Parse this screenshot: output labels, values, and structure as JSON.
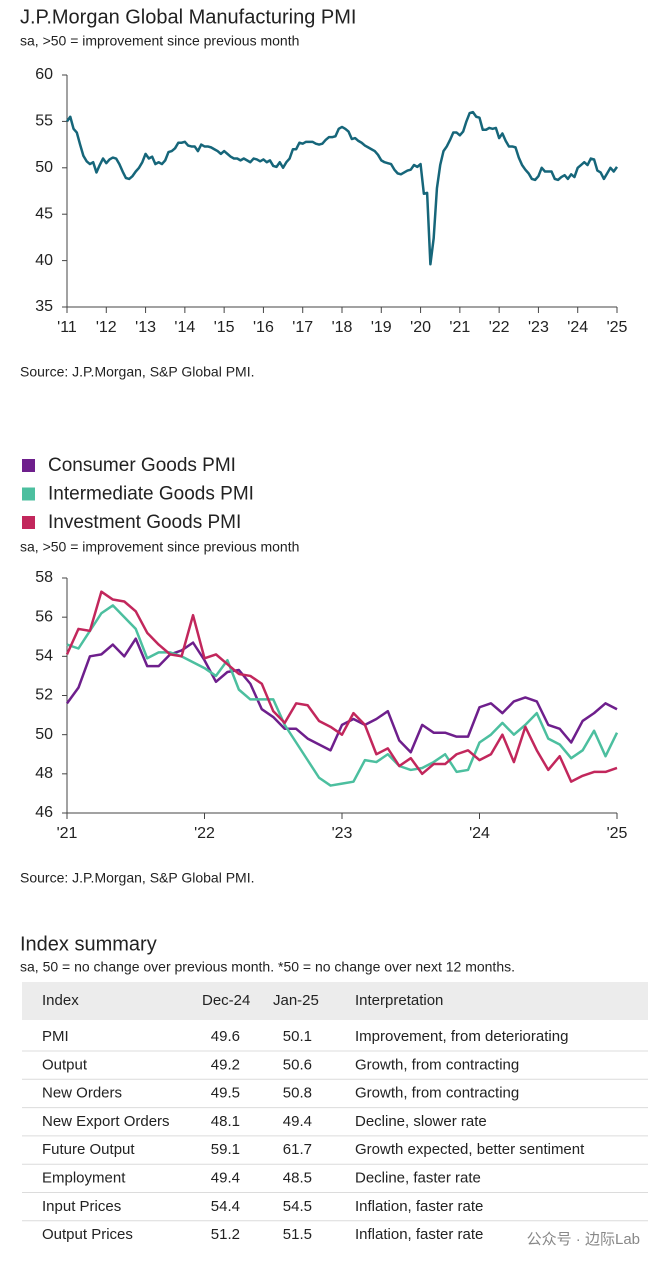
{
  "chart_data": [
    {
      "type": "line",
      "title": "J.P.Morgan Global Manufacturing PMI",
      "subtitle": "sa, >50 = improvement since previous month",
      "source": "Source: J.P.Morgan, S&P Global PMI.",
      "color": "#16667a",
      "categories": [
        "'11",
        null,
        null,
        null,
        null,
        null,
        null,
        null,
        null,
        null,
        null,
        null,
        "'12",
        null,
        null,
        null,
        null,
        null,
        null,
        null,
        null,
        null,
        null,
        null,
        "'13",
        null,
        null,
        null,
        null,
        null,
        null,
        null,
        null,
        null,
        null,
        null,
        "'14",
        null,
        null,
        null,
        null,
        null,
        null,
        null,
        null,
        null,
        null,
        null,
        "'15",
        null,
        null,
        null,
        null,
        null,
        null,
        null,
        null,
        null,
        null,
        null,
        "'16",
        null,
        null,
        null,
        null,
        null,
        null,
        null,
        null,
        null,
        null,
        null,
        "'17",
        null,
        null,
        null,
        null,
        null,
        null,
        null,
        null,
        null,
        null,
        null,
        "'18",
        null,
        null,
        null,
        null,
        null,
        null,
        null,
        null,
        null,
        null,
        null,
        "'19",
        null,
        null,
        null,
        null,
        null,
        null,
        null,
        null,
        null,
        null,
        null,
        "'20",
        null,
        null,
        null,
        null,
        null,
        null,
        null,
        null,
        null,
        null,
        null,
        "'21",
        null,
        null,
        null,
        null,
        null,
        null,
        null,
        null,
        null,
        null,
        null,
        "'22",
        null,
        null,
        null,
        null,
        null,
        null,
        null,
        null,
        null,
        null,
        null,
        "'23",
        null,
        null,
        null,
        null,
        null,
        null,
        null,
        null,
        null,
        null,
        null,
        "'24",
        null,
        null,
        null,
        null,
        null,
        null,
        null,
        null,
        null,
        null,
        null,
        "'25"
      ],
      "values": [
        55.0,
        55.5,
        54.2,
        53.8,
        52.5,
        51.3,
        50.7,
        50.4,
        50.6,
        49.5,
        50.3,
        51.0,
        50.5,
        50.9,
        51.1,
        51.0,
        50.4,
        49.6,
        48.9,
        48.8,
        49.1,
        49.6,
        50.0,
        50.6,
        51.5,
        51.0,
        51.2,
        50.4,
        50.6,
        50.4,
        50.8,
        51.7,
        51.8,
        52.1,
        52.7,
        52.7,
        52.8,
        52.4,
        52.3,
        52.3,
        51.8,
        52.5,
        52.3,
        52.3,
        52.2,
        52.0,
        51.8,
        51.5,
        51.8,
        51.5,
        51.2,
        51.0,
        51.0,
        50.8,
        51.0,
        50.8,
        50.6,
        51.0,
        50.9,
        50.7,
        50.9,
        50.6,
        50.8,
        50.2,
        50.1,
        50.6,
        50.0,
        50.6,
        51.0,
        52.0,
        52.0,
        52.7,
        52.6,
        52.8,
        52.8,
        52.8,
        52.6,
        52.5,
        52.6,
        53.0,
        53.3,
        53.3,
        53.4,
        54.2,
        54.4,
        54.2,
        53.9,
        53.1,
        53.2,
        52.9,
        52.7,
        52.4,
        52.2,
        52.0,
        51.8,
        51.4,
        50.8,
        50.6,
        50.5,
        50.4,
        49.8,
        49.4,
        49.3,
        49.5,
        49.7,
        49.8,
        50.3,
        50.1,
        50.4,
        47.2,
        47.3,
        39.6,
        42.4,
        47.8,
        50.3,
        51.8,
        52.3,
        53.0,
        53.8,
        53.8,
        53.5,
        53.9,
        55.0,
        55.9,
        56.0,
        55.5,
        55.4,
        54.1,
        54.1,
        54.3,
        54.2,
        54.3,
        53.2,
        53.7,
        52.9,
        52.3,
        52.3,
        52.2,
        51.1,
        50.3,
        49.8,
        49.4,
        48.8,
        48.7,
        49.1,
        50.0,
        49.6,
        49.6,
        49.6,
        48.8,
        48.7,
        49.0,
        49.2,
        48.8,
        49.3,
        49.0,
        50.0,
        50.3,
        50.6,
        50.3,
        51.0,
        50.9,
        49.7,
        49.5,
        48.8,
        49.4,
        50.0,
        49.6,
        50.1
      ],
      "ylim": [
        35,
        60
      ],
      "yticks": [
        35,
        40,
        45,
        50,
        55,
        60
      ]
    },
    {
      "type": "line",
      "subtitle": "sa, >50 = improvement since previous month",
      "source": "Source: J.P.Morgan, S&P Global PMI.",
      "categories": [
        "'21",
        null,
        null,
        null,
        null,
        null,
        null,
        null,
        null,
        null,
        null,
        null,
        "'22",
        null,
        null,
        null,
        null,
        null,
        null,
        null,
        null,
        null,
        null,
        null,
        "'23",
        null,
        null,
        null,
        null,
        null,
        null,
        null,
        null,
        null,
        null,
        null,
        "'24",
        null,
        null,
        null,
        null,
        null,
        null,
        null,
        null,
        null,
        null,
        null,
        "'25"
      ],
      "series": [
        {
          "name": "Consumer Goods PMI",
          "color": "#6e1f8c",
          "values": [
            51.6,
            52.4,
            54.0,
            54.1,
            54.6,
            54.0,
            54.9,
            53.5,
            53.5,
            54.1,
            54.3,
            54.7,
            53.8,
            52.7,
            53.2,
            53.3,
            52.6,
            51.3,
            50.9,
            50.3,
            50.3,
            49.8,
            49.5,
            49.2,
            50.5,
            50.8,
            50.5,
            50.8,
            51.2,
            49.7,
            49.1,
            50.5,
            50.1,
            50.1,
            49.9,
            49.9,
            51.4,
            51.6,
            51.1,
            51.7,
            51.9,
            51.7,
            50.5,
            50.3,
            49.6,
            50.7,
            51.1,
            51.6,
            51.3
          ]
        },
        {
          "name": "Intermediate Goods PMI",
          "color": "#4cbf9f",
          "values": [
            54.6,
            54.4,
            55.3,
            56.2,
            56.6,
            56.0,
            55.4,
            53.9,
            54.2,
            54.2,
            54.0,
            53.7,
            53.4,
            53.0,
            53.8,
            52.3,
            51.8,
            51.8,
            51.8,
            50.5,
            49.6,
            48.7,
            47.8,
            47.4,
            47.5,
            47.6,
            48.7,
            48.6,
            49.0,
            48.4,
            48.2,
            48.3,
            48.6,
            49.0,
            48.1,
            48.2,
            49.6,
            50.0,
            50.6,
            50.0,
            50.5,
            51.1,
            49.8,
            49.5,
            48.8,
            49.2,
            50.2,
            48.9,
            50.1
          ]
        },
        {
          "name": "Investment Goods PMI",
          "color": "#c2275c",
          "values": [
            54.1,
            55.4,
            55.3,
            57.3,
            56.9,
            56.8,
            56.3,
            55.2,
            54.6,
            54.1,
            54.0,
            56.1,
            53.9,
            54.1,
            53.6,
            53.1,
            53.0,
            52.6,
            51.2,
            50.6,
            51.6,
            51.5,
            50.7,
            50.4,
            50.0,
            51.1,
            50.5,
            49.0,
            49.3,
            48.4,
            48.8,
            48.0,
            48.5,
            48.5,
            49.0,
            49.2,
            48.7,
            49.0,
            50.0,
            48.6,
            50.4,
            49.2,
            48.2,
            48.9,
            47.6,
            47.9,
            48.1,
            48.1,
            48.3
          ]
        }
      ],
      "ylim": [
        46,
        58
      ],
      "yticks": [
        46,
        48,
        50,
        52,
        54,
        56,
        58
      ]
    }
  ],
  "table": {
    "title": "Index summary",
    "subtitle": "sa, 50 = no change over previous month. *50 = no change over next 12 months.",
    "header": [
      "Index",
      "Dec-24",
      "Jan-25",
      "Interpretation"
    ],
    "rows": [
      [
        "PMI",
        "49.6",
        "50.1",
        "Improvement, from deteriorating"
      ],
      [
        "Output",
        "49.2",
        "50.6",
        "Growth, from contracting"
      ],
      [
        "New Orders",
        "49.5",
        "50.8",
        "Growth, from contracting"
      ],
      [
        "New Export Orders",
        "48.1",
        "49.4",
        "Decline, slower rate"
      ],
      [
        "Future Output",
        "59.1",
        "61.7",
        "Growth expected, better sentiment"
      ],
      [
        "Employment",
        "49.4",
        "48.5",
        "Decline, faster rate"
      ],
      [
        "Input Prices",
        "54.4",
        "54.5",
        "Inflation, faster rate"
      ],
      [
        "Output Prices",
        "51.2",
        "51.5",
        "Inflation, faster rate"
      ]
    ]
  },
  "watermark": "公众号 · 边际Lab"
}
